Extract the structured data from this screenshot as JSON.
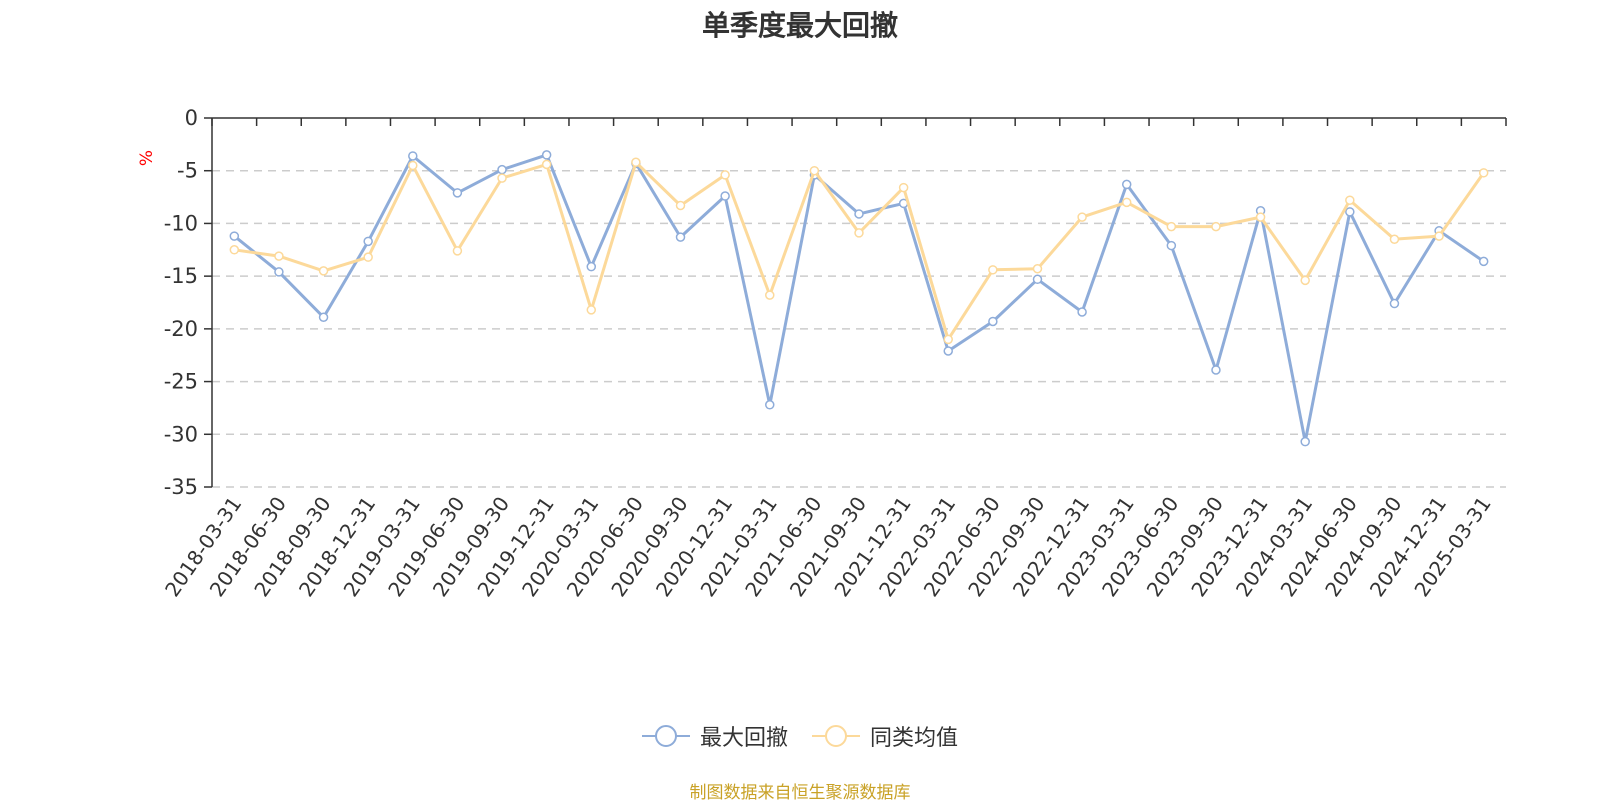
{
  "chart_data": {
    "type": "line",
    "title": "单季度最大回撤",
    "ylabel": "%",
    "xlabel": "",
    "ylim": [
      -35,
      0
    ],
    "yticks": [
      0,
      -5,
      -10,
      -15,
      -20,
      -25,
      -30,
      -35
    ],
    "grid": true,
    "legend_position": "bottom-center",
    "categories": [
      "2018-03-31",
      "2018-06-30",
      "2018-09-30",
      "2018-12-31",
      "2019-03-31",
      "2019-06-30",
      "2019-09-30",
      "2019-12-31",
      "2020-03-31",
      "2020-06-30",
      "2020-09-30",
      "2020-12-31",
      "2021-03-31",
      "2021-06-30",
      "2021-09-30",
      "2021-12-31",
      "2022-03-31",
      "2022-06-30",
      "2022-09-30",
      "2022-12-31",
      "2023-03-31",
      "2023-06-30",
      "2023-09-30",
      "2023-12-31",
      "2024-03-31",
      "2024-06-30",
      "2024-09-30",
      "2024-12-31",
      "2025-03-31"
    ],
    "series": [
      {
        "name": "最大回撤",
        "color": "#8eacd9",
        "values": [
          -11.2,
          -14.6,
          -18.9,
          -11.7,
          -3.6,
          -7.1,
          -4.9,
          -3.5,
          -14.1,
          -4.3,
          -11.3,
          -7.4,
          -27.2,
          -5.4,
          -9.1,
          -8.1,
          -22.1,
          -19.3,
          -15.3,
          -18.4,
          -6.3,
          -12.1,
          -23.9,
          -8.8,
          -30.7,
          -8.9,
          -17.6,
          -10.7,
          -13.6
        ]
      },
      {
        "name": "同类均值",
        "color": "#fcd99a",
        "values": [
          -12.5,
          -13.1,
          -14.5,
          -13.2,
          -4.5,
          -12.6,
          -5.7,
          -4.4,
          -18.2,
          -4.2,
          -8.3,
          -5.4,
          -16.8,
          -5.0,
          -10.9,
          -6.6,
          -21.0,
          -14.4,
          -14.3,
          -9.4,
          -8.0,
          -10.3,
          -10.3,
          -9.4,
          -15.4,
          -7.8,
          -11.5,
          -11.2,
          -5.2
        ]
      }
    ]
  },
  "source_text": "制图数据来自恒生聚源数据库"
}
